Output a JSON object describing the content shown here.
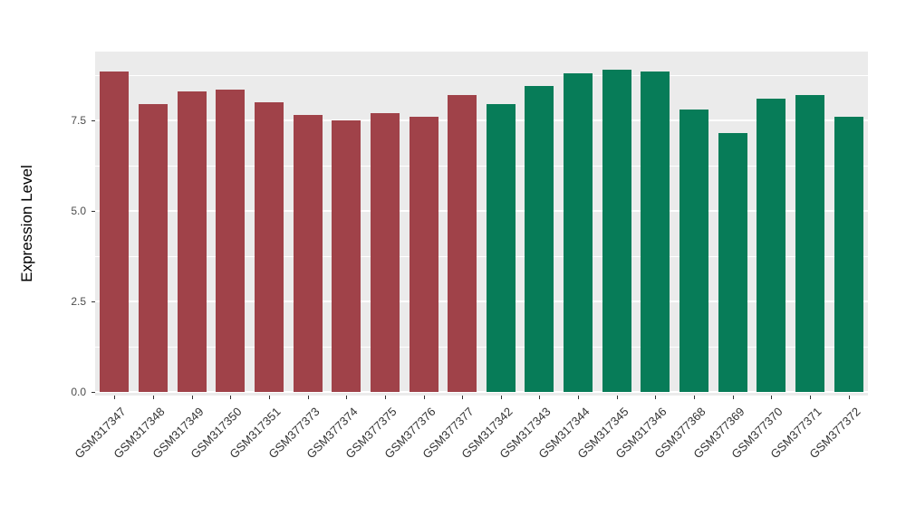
{
  "chart_data": {
    "type": "bar",
    "title": "",
    "xlabel": "",
    "ylabel": "Expression Level",
    "ylim": [
      0,
      9.3
    ],
    "yticks": [
      0.0,
      2.5,
      5.0,
      7.5
    ],
    "ytick_labels": [
      "0.0",
      "2.5",
      "5.0",
      "7.5"
    ],
    "grid": "on",
    "legend": "none",
    "panel_background": "#EBEBEB",
    "gridline_color": "#FFFFFF",
    "group_palette": {
      "group1": "#A04249",
      "group2": "#077C58"
    },
    "categories": [
      "GSM317347",
      "GSM317348",
      "GSM317349",
      "GSM317350",
      "GSM317351",
      "GSM377373",
      "GSM377374",
      "GSM377375",
      "GSM377376",
      "GSM377377",
      "GSM317342",
      "GSM317343",
      "GSM317344",
      "GSM317345",
      "GSM317346",
      "GSM377368",
      "GSM377369",
      "GSM377370",
      "GSM377371",
      "GSM377372"
    ],
    "values": [
      8.85,
      7.95,
      8.3,
      8.35,
      8.0,
      7.65,
      7.5,
      7.7,
      7.6,
      8.2,
      7.95,
      8.45,
      8.8,
      8.9,
      8.85,
      7.8,
      7.15,
      8.1,
      8.2,
      7.6
    ],
    "groups": [
      "group1",
      "group1",
      "group1",
      "group1",
      "group1",
      "group1",
      "group1",
      "group1",
      "group1",
      "group1",
      "group2",
      "group2",
      "group2",
      "group2",
      "group2",
      "group2",
      "group2",
      "group2",
      "group2",
      "group2"
    ]
  }
}
